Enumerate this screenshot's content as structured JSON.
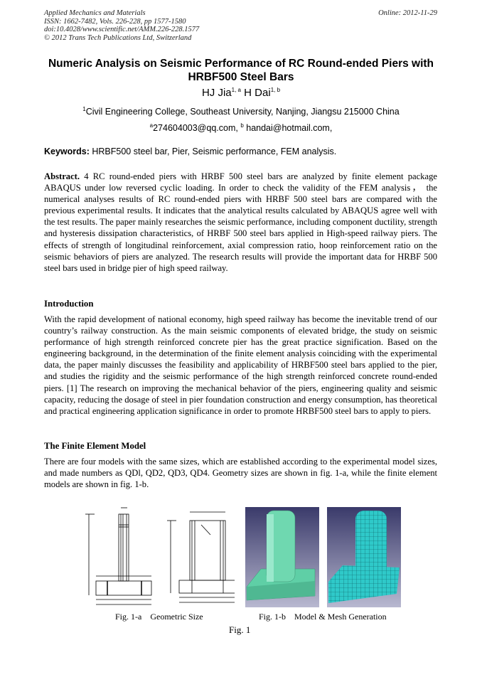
{
  "header": {
    "journal": "Applied Mechanics and Materials",
    "issn": "ISSN: 1662-7482, Vols. 226-228, pp 1577-1580",
    "doi": "doi:10.4028/www.scientific.net/AMM.226-228.1577",
    "copyright": "© 2012 Trans Tech Publications Ltd, Switzerland",
    "online": "Online: 2012-11-29"
  },
  "title": "Numeric Analysis on Seismic Performance of RC Round-ended Piers with HRBF500 Steel Bars",
  "authors": {
    "a1": "HJ Jia",
    "a1_sup": "1, a",
    "a2": "H Dai",
    "a2_sup": "1, b"
  },
  "affiliation": {
    "sup": "1",
    "text": "Civil Engineering College, Southeast University, Nanjing, Jiangsu 215000 China"
  },
  "emails": {
    "sup_a": "a",
    "email_a": "274604003@qq.com, ",
    "sup_b": "b",
    "email_b": " handai@hotmail.com,"
  },
  "keywords": {
    "label": "Keywords:",
    "text": " HRBF500 steel bar, Pier, Seismic performance, FEM analysis."
  },
  "abstract": {
    "label": "Abstract.",
    "text": " 4 RC round-ended piers with HRBF 500 steel bars are analyzed by finite element package ABAQUS under low reversed cyclic loading. In order to check the validity of the FEM analysis， the numerical analyses results of RC round-ended piers with HRBF 500 steel bars are compared with the previous experimental results. It indicates that the analytical results calculated by ABAQUS agree well with the test results. The paper mainly researches the seismic performance, including component ductility, strength and hysteresis dissipation characteristics, of HRBF 500 steel bars applied in High-speed railway piers. The effects of strength of longitudinal reinforcement, axial compression ratio, hoop reinforcement ratio on the seismic behaviors of piers are analyzed. The research results will provide the important data for HRBF 500 steel bars used in bridge pier of high speed railway."
  },
  "introduction": {
    "heading": "Introduction",
    "text": "With the rapid development of national economy, high speed railway has become the inevitable trend of our country’s railway construction. As the main seismic components of elevated bridge, the study on seismic performance of high strength reinforced concrete pier has the great practice signification. Based on the engineering background, in the determination of the finite element analysis coinciding with the experimental data, the paper mainly discusses the feasibility and applicability of HRBF500 steel bars applied to the pier, and studies the rigidity and the seismic performance of the high strength reinforced concrete round-ended piers. [1] The research on improving the mechanical behavior of the piers, engineering quality and seismic capacity, reducing the dosage of steel in pier foundation construction and energy consumption, has theoretical and practical engineering application significance in order to promote HRBF500 steel bars to apply to piers."
  },
  "fem": {
    "heading": "The Finite Element Model",
    "text": "There are four models with the same sizes, which are established according to the experimental model sizes, and made numbers as QDl, QD2, QD3, QD4. Geometry sizes are shown in fig. 1-a, while the finite element models are shown in fig. 1-b."
  },
  "figure": {
    "cap_a": "Fig. 1-a    Geometric Size",
    "cap_b": "Fig. 1-b    Model & Mesh Generation",
    "cap": "Fig. 1",
    "colors": {
      "model": "#5fcfa6",
      "mesh": "#2fc9c9",
      "bg_top": "#3a3a6a",
      "bg_bottom": "#b8b8d0"
    }
  }
}
